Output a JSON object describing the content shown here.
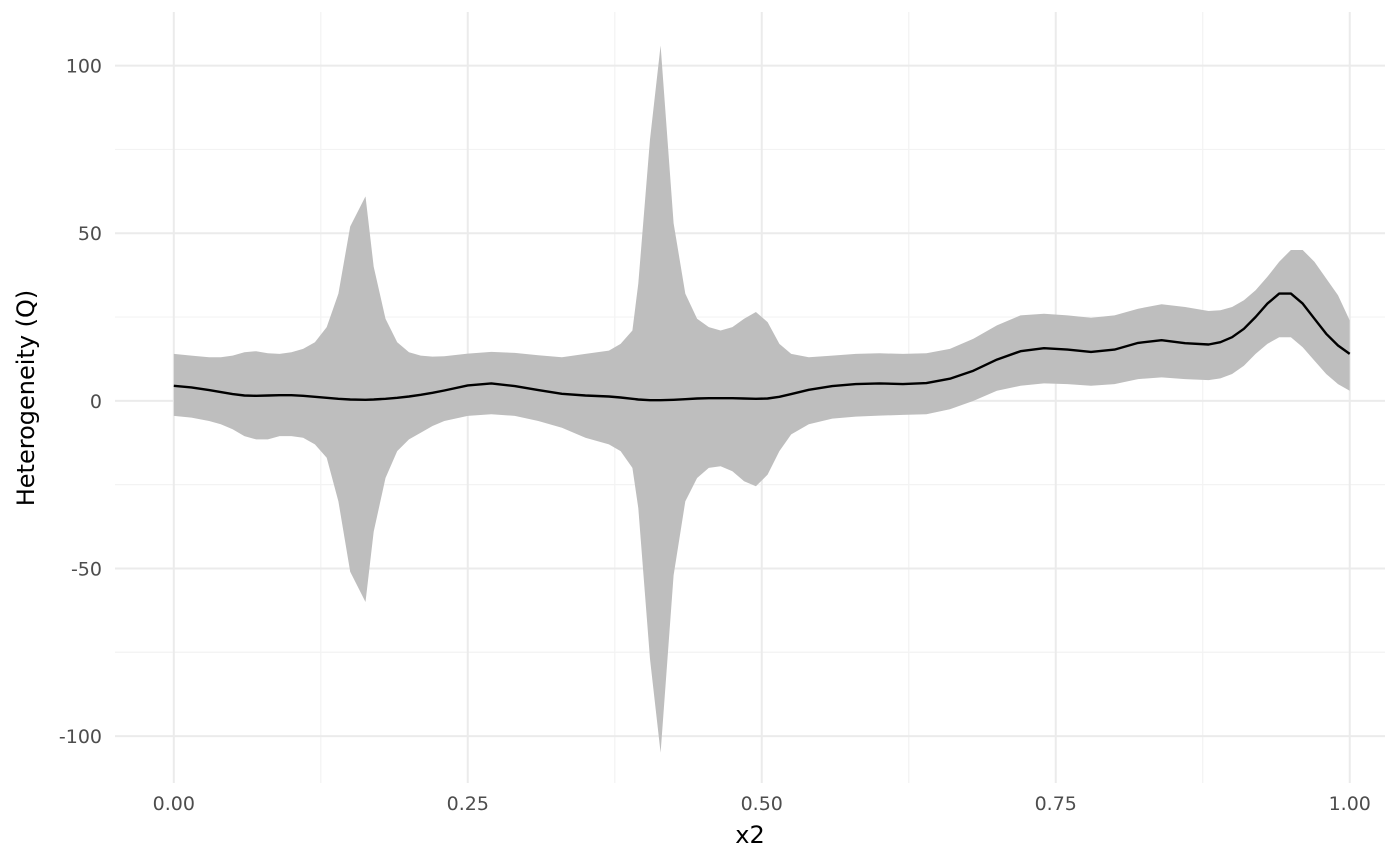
{
  "chart_data": {
    "type": "area",
    "xlabel": "x2",
    "ylabel": "Heterogeneity (Q)",
    "xlim": [
      -0.05,
      1.03
    ],
    "ylim": [
      -114,
      116
    ],
    "x_ticks": [
      0,
      0.25,
      0.5,
      0.75,
      1
    ],
    "x_tick_labels": [
      "0.00",
      "0.25",
      "0.50",
      "0.75",
      "1.00"
    ],
    "y_ticks": [
      -100,
      -50,
      0,
      50,
      100
    ],
    "y_tick_labels": [
      "-100",
      "-50",
      "0",
      "50",
      "100"
    ],
    "grid": true,
    "legend": "none",
    "colors": {
      "band": "#bebebe",
      "line": "#000000"
    },
    "series": [
      {
        "x": [
          0.0,
          0.015,
          0.03,
          0.04,
          0.05,
          0.06,
          0.07,
          0.08,
          0.09,
          0.1,
          0.11,
          0.12,
          0.13,
          0.14,
          0.15,
          0.163,
          0.17,
          0.18,
          0.19,
          0.2,
          0.21,
          0.22,
          0.23,
          0.25,
          0.27,
          0.29,
          0.31,
          0.33,
          0.35,
          0.37,
          0.38,
          0.39,
          0.395,
          0.405,
          0.414,
          0.425,
          0.435,
          0.445,
          0.455,
          0.465,
          0.475,
          0.485,
          0.495,
          0.505,
          0.515,
          0.525,
          0.54,
          0.56,
          0.58,
          0.6,
          0.62,
          0.64,
          0.66,
          0.68,
          0.7,
          0.72,
          0.74,
          0.76,
          0.78,
          0.8,
          0.82,
          0.84,
          0.86,
          0.88,
          0.89,
          0.9,
          0.91,
          0.92,
          0.93,
          0.94,
          0.95,
          0.96,
          0.97,
          0.98,
          0.99,
          1.0
        ],
        "y": [
          4.5,
          4.0,
          3.2,
          2.6,
          2.0,
          1.6,
          1.5,
          1.6,
          1.7,
          1.7,
          1.5,
          1.2,
          0.9,
          0.6,
          0.4,
          0.3,
          0.4,
          0.6,
          0.9,
          1.3,
          1.8,
          2.4,
          3.1,
          4.6,
          5.2,
          4.4,
          3.2,
          2.1,
          1.6,
          1.3,
          1.0,
          0.6,
          0.4,
          0.2,
          0.2,
          0.3,
          0.5,
          0.7,
          0.8,
          0.8,
          0.8,
          0.7,
          0.6,
          0.7,
          1.2,
          2.0,
          3.3,
          4.4,
          5.0,
          5.2,
          5.0,
          5.3,
          6.6,
          9.0,
          12.3,
          14.8,
          15.7,
          15.3,
          14.6,
          15.3,
          17.3,
          18.1,
          17.2,
          16.8,
          17.5,
          19.0,
          21.5,
          25.0,
          29.0,
          32.0,
          32.0,
          29.0,
          24.5,
          20.0,
          16.5,
          14.0
        ],
        "upper": [
          14.0,
          13.5,
          13.0,
          13.0,
          13.5,
          14.5,
          14.8,
          14.2,
          14.0,
          14.5,
          15.5,
          17.5,
          22.0,
          32.0,
          52.0,
          61.0,
          40.0,
          24.5,
          17.5,
          14.5,
          13.5,
          13.2,
          13.3,
          14.1,
          14.6,
          14.3,
          13.6,
          13.0,
          14.0,
          15.0,
          17.0,
          21.0,
          35.0,
          78.0,
          106.0,
          53.0,
          32.0,
          24.5,
          22.0,
          21.0,
          22.0,
          24.5,
          26.5,
          23.5,
          17.0,
          14.0,
          13.0,
          13.5,
          14.0,
          14.2,
          14.0,
          14.2,
          15.5,
          18.5,
          22.5,
          25.5,
          26.0,
          25.5,
          24.8,
          25.5,
          27.5,
          28.8,
          28.0,
          26.8,
          27.0,
          28.0,
          30.0,
          33.0,
          37.0,
          41.5,
          45.0,
          45.0,
          41.5,
          36.5,
          31.5,
          24.0
        ],
        "lower": [
          -4.5,
          -5.0,
          -6.0,
          -7.0,
          -8.5,
          -10.5,
          -11.5,
          -11.5,
          -10.5,
          -10.5,
          -11.0,
          -13.0,
          -17.0,
          -30.0,
          -51.0,
          -60.0,
          -39.0,
          -23.0,
          -15.0,
          -11.5,
          -9.5,
          -7.5,
          -6.0,
          -4.5,
          -4.0,
          -4.5,
          -6.0,
          -8.0,
          -11.0,
          -13.0,
          -15.0,
          -20.0,
          -32.0,
          -77.0,
          -105.0,
          -52.0,
          -30.0,
          -23.0,
          -20.0,
          -19.5,
          -21.0,
          -24.0,
          -25.5,
          -22.0,
          -15.0,
          -10.0,
          -7.0,
          -5.3,
          -4.7,
          -4.4,
          -4.2,
          -4.0,
          -2.5,
          0.0,
          3.0,
          4.5,
          5.2,
          5.0,
          4.5,
          5.0,
          6.5,
          7.0,
          6.5,
          6.2,
          6.7,
          8.0,
          10.5,
          14.0,
          17.0,
          19.0,
          19.0,
          16.0,
          12.0,
          8.0,
          5.0,
          3.0
        ]
      }
    ]
  }
}
